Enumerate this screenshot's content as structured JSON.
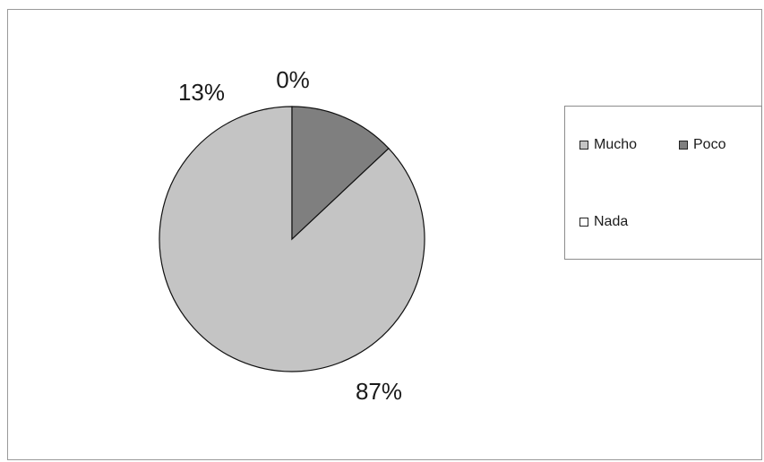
{
  "chart_data": {
    "type": "pie",
    "categories": [
      "Mucho",
      "Poco",
      "Nada"
    ],
    "values": [
      87,
      13,
      0
    ],
    "labels": [
      "87%",
      "13%",
      "0%"
    ],
    "colors": [
      "#c4c4c4",
      "#7f7f7f",
      "#ffffff"
    ],
    "legend": "right",
    "start_angle_deg": 0,
    "direction": "counterclockwise"
  }
}
